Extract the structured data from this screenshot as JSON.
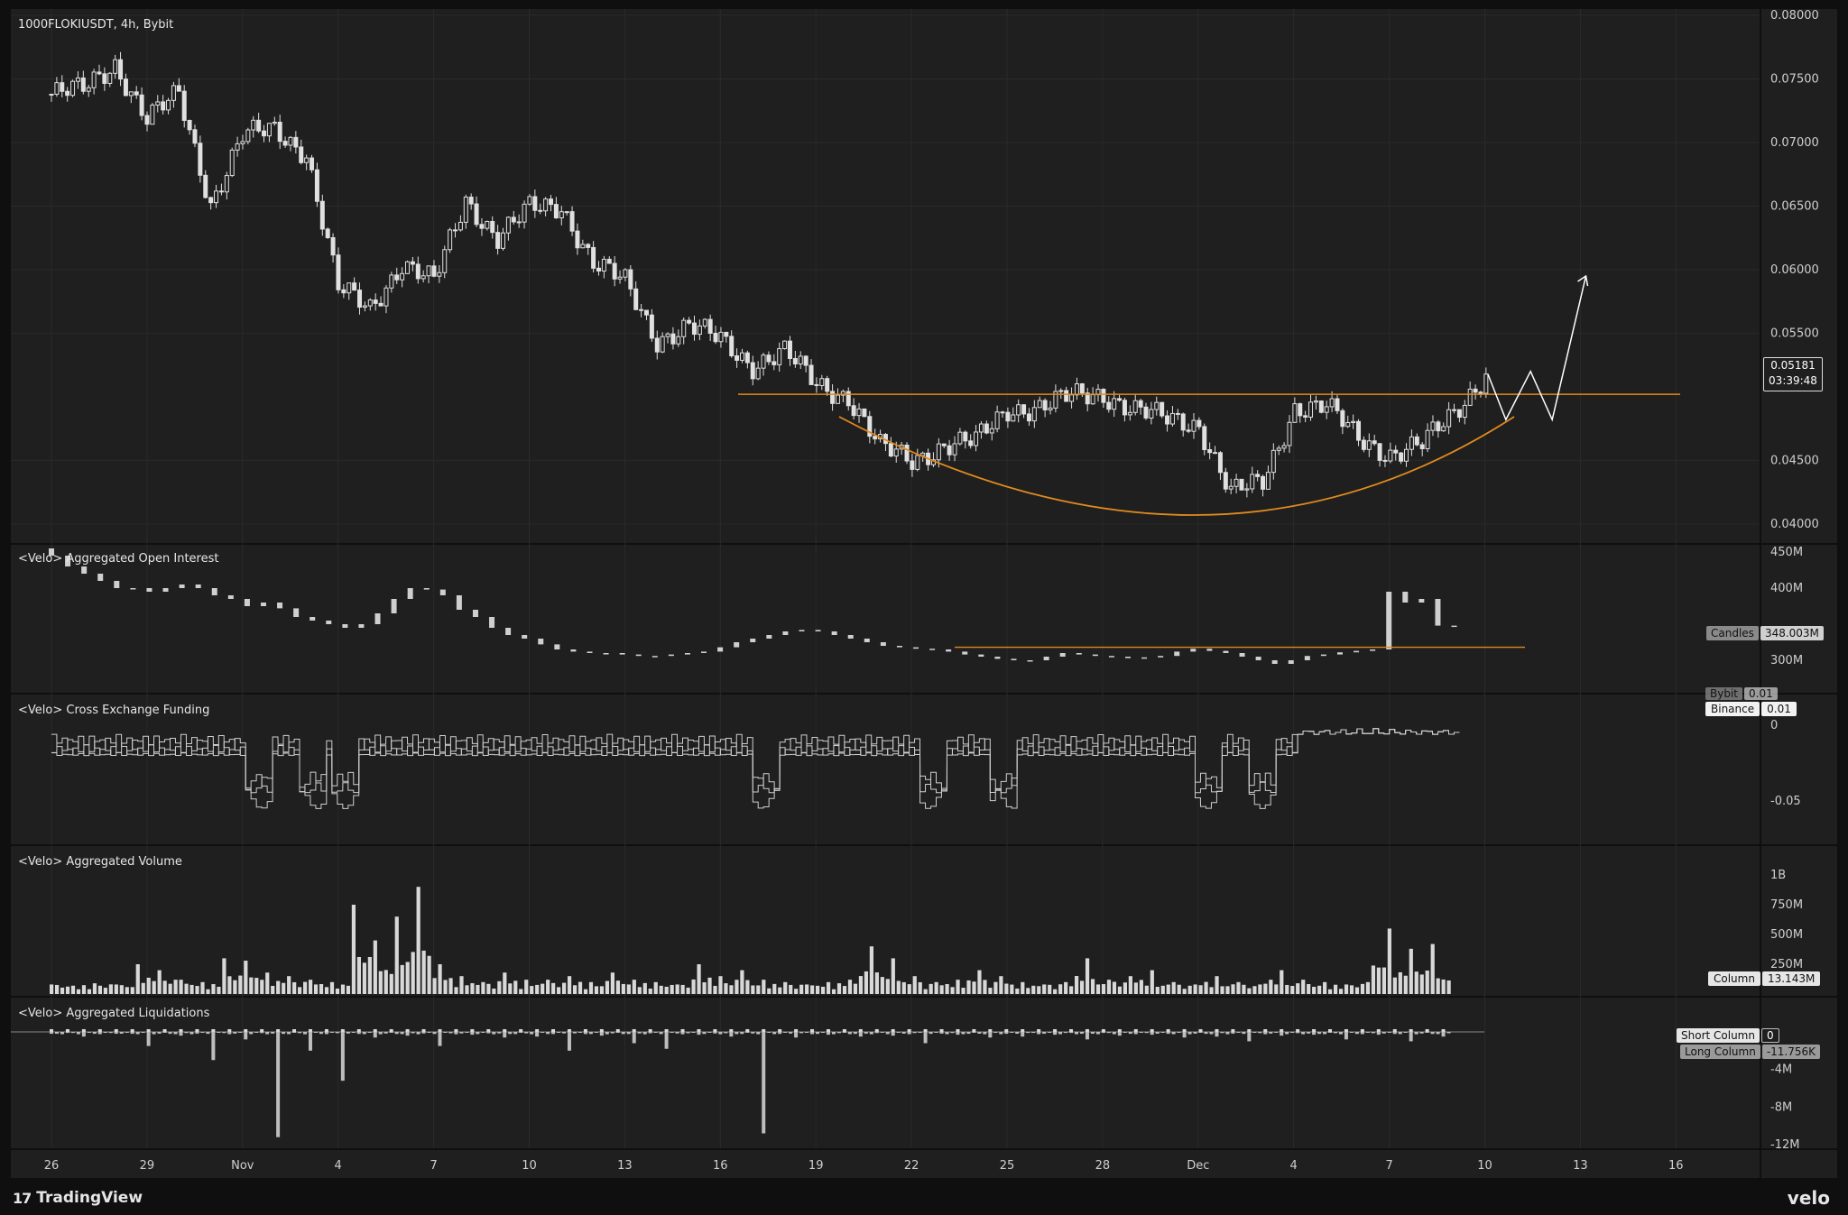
{
  "header": {
    "title": "1000FLOKIUSDT, 4h, Bybit"
  },
  "colors": {
    "background": "#1f1f1f",
    "grid": "#2a2a2a",
    "candle": "#e0e0e0",
    "annotation": "#e08a1e",
    "axis_text": "#cfcfcf"
  },
  "price_scale": {
    "labels": [
      "0.08000",
      "0.07500",
      "0.07000",
      "0.06500",
      "0.06000",
      "0.05500",
      "0.04500",
      "0.04000"
    ],
    "current_price": "0.05181",
    "countdown": "03:39:48"
  },
  "time_axis": {
    "labels": [
      "26",
      "29",
      "Nov",
      "4",
      "7",
      "10",
      "13",
      "16",
      "19",
      "22",
      "25",
      "28",
      "Dec",
      "4",
      "7",
      "10",
      "13",
      "16"
    ]
  },
  "panes": {
    "open_interest": {
      "title": "<Velo> Aggregated Open Interest",
      "axis_labels": [
        "450M",
        "400M",
        "300M"
      ],
      "badge_label": "Candles",
      "badge_value": "348.003M"
    },
    "funding": {
      "title": "<Velo> Cross Exchange Funding",
      "axis_labels": [
        "0",
        "-0.05"
      ],
      "badge_bybit_label": "Bybit",
      "badge_bybit_value": "0.01",
      "badge_label": "Binance",
      "badge_value": "0.01"
    },
    "volume": {
      "title": "<Velo> Aggregated Volume",
      "axis_labels": [
        "1B",
        "750M",
        "500M",
        "250M"
      ],
      "badge_label": "Column",
      "badge_value": "13.143M"
    },
    "liquidations": {
      "title": "<Velo> Aggregated Liquidations",
      "axis_labels": [
        "-4M",
        "-8M",
        "-12M"
      ],
      "badge_short_label": "Short Column",
      "badge_short_value": "0",
      "badge_long_label": "Long Column",
      "badge_long_value": "-11.756K"
    }
  },
  "footer": {
    "brand": "TradingView",
    "velo": "velo"
  },
  "chart_data": {
    "type": "candlestick",
    "symbol": "1000FLOKIUSDT",
    "interval": "4h",
    "exchange": "Bybit",
    "ylim": [
      0.0385,
      0.0805
    ],
    "price_path": [
      [
        "26",
        0.0738
      ],
      [
        "27",
        0.0742
      ],
      [
        "28",
        0.0762
      ],
      [
        "29",
        0.0718
      ],
      [
        "30",
        0.0738
      ],
      [
        "31",
        0.0652
      ],
      [
        "Nov 1",
        0.0705
      ],
      [
        "Nov 2",
        0.071
      ],
      [
        "Nov 3",
        0.0692
      ],
      [
        "Nov 4",
        0.0585
      ],
      [
        "Nov 5",
        0.057
      ],
      [
        "Nov 6",
        0.0605
      ],
      [
        "Nov 7",
        0.059
      ],
      [
        "Nov 8",
        0.0655
      ],
      [
        "Nov 9",
        0.0625
      ],
      [
        "Nov 10",
        0.0648
      ],
      [
        "Nov 11",
        0.065
      ],
      [
        "Nov 12",
        0.0605
      ],
      [
        "Nov 13",
        0.059
      ],
      [
        "Nov 14",
        0.0545
      ],
      [
        "Nov 15",
        0.0555
      ],
      [
        "Nov 16",
        0.0545
      ],
      [
        "Nov 17",
        0.0525
      ],
      [
        "Nov 18",
        0.0535
      ],
      [
        "Nov 19",
        0.051
      ],
      [
        "Nov 20",
        0.05
      ],
      [
        "Nov 21",
        0.046
      ],
      [
        "Nov 22",
        0.045
      ],
      [
        "Nov 23",
        0.0462
      ],
      [
        "Nov 24",
        0.0465
      ],
      [
        "Nov 25",
        0.049
      ],
      [
        "Nov 26",
        0.0492
      ],
      [
        "Nov 27",
        0.05
      ],
      [
        "Nov 28",
        0.0502
      ],
      [
        "Nov 29",
        0.049
      ],
      [
        "Nov 30",
        0.0482
      ],
      [
        "Dec 1",
        0.0478
      ],
      [
        "Dec 2",
        0.0425
      ],
      [
        "Dec 3",
        0.0432
      ],
      [
        "Dec 4",
        0.0492
      ],
      [
        "Dec 5",
        0.0492
      ],
      [
        "Dec 6",
        0.0468
      ],
      [
        "Dec 7",
        0.0455
      ],
      [
        "Dec 8",
        0.0462
      ],
      [
        "Dec 9",
        0.0488
      ],
      [
        "Dec 10",
        0.0518
      ]
    ],
    "annotations": {
      "resistance": 0.0502,
      "projected_path": [
        [
          "Dec 10",
          0.0518
        ],
        [
          "Dec 10",
          0.0482
        ],
        [
          "Dec 11",
          0.052
        ],
        [
          "Dec 11",
          0.0482
        ],
        [
          "Dec 12",
          0.0595
        ]
      ]
    },
    "open_interest_m": [
      455,
      445,
      430,
      420,
      410,
      400,
      400,
      395,
      400,
      405,
      400,
      390,
      385,
      375,
      380,
      372,
      360,
      355,
      350,
      345,
      350,
      365,
      385,
      400,
      398,
      390,
      370,
      360,
      345,
      335,
      330,
      322,
      315,
      312,
      310,
      310,
      308,
      306,
      306,
      308,
      310,
      312,
      318,
      325,
      330,
      335,
      340,
      342,
      340,
      335,
      330,
      325,
      320,
      318,
      316,
      315,
      312,
      308,
      305,
      302,
      300,
      300,
      305,
      310,
      308,
      306,
      305,
      303,
      304,
      306,
      312,
      316,
      313,
      310,
      305,
      300,
      295,
      300,
      306,
      308,
      311,
      313,
      315,
      395,
      380,
      385,
      348
    ],
    "funding_min_threshold": -0.05,
    "volume_b_spikes": [
      0.08,
      0.07,
      0.09,
      0.08,
      0.25,
      0.2,
      0.12,
      0.1,
      0.3,
      0.28,
      0.18,
      0.15,
      0.12,
      0.1,
      0.75,
      0.45,
      0.65,
      0.9,
      0.25,
      0.15,
      0.1,
      0.18,
      0.12,
      0.12,
      0.15,
      0.1,
      0.18,
      0.12,
      0.1,
      0.08,
      0.25,
      0.15,
      0.2,
      0.12,
      0.1,
      0.08,
      0.1,
      0.12,
      0.4,
      0.3,
      0.15,
      0.1,
      0.12,
      0.2,
      0.15,
      0.1,
      0.08,
      0.1,
      0.3,
      0.12,
      0.15,
      0.2,
      0.1,
      0.08,
      0.15,
      0.1,
      0.08,
      0.2,
      0.12,
      0.1,
      0.08,
      0.1,
      0.55,
      0.38,
      0.42,
      0.25
    ],
    "liquidations_m_spikes": [
      -0.2,
      -0.5,
      -0.2,
      -1.5,
      -0.4,
      -3.0,
      -0.8,
      -11.2,
      -2.0,
      -5.2,
      -0.6,
      -0.4,
      -1.5,
      -0.3,
      -0.6,
      -0.5,
      -2.0,
      -0.3,
      -0.4,
      -1.2,
      -1.8,
      -0.3,
      -0.5,
      -10.8,
      -0.6,
      -0.3,
      -0.5,
      -0.4,
      -1.2,
      -0.3,
      -0.6,
      -0.5,
      -0.3,
      -0.8,
      -2.2,
      -0.4,
      -0.3,
      -0.6,
      -0.5,
      -1.0,
      -0.4,
      -0.3,
      -0.8,
      -0.3,
      -1.0,
      -0.5
    ]
  }
}
